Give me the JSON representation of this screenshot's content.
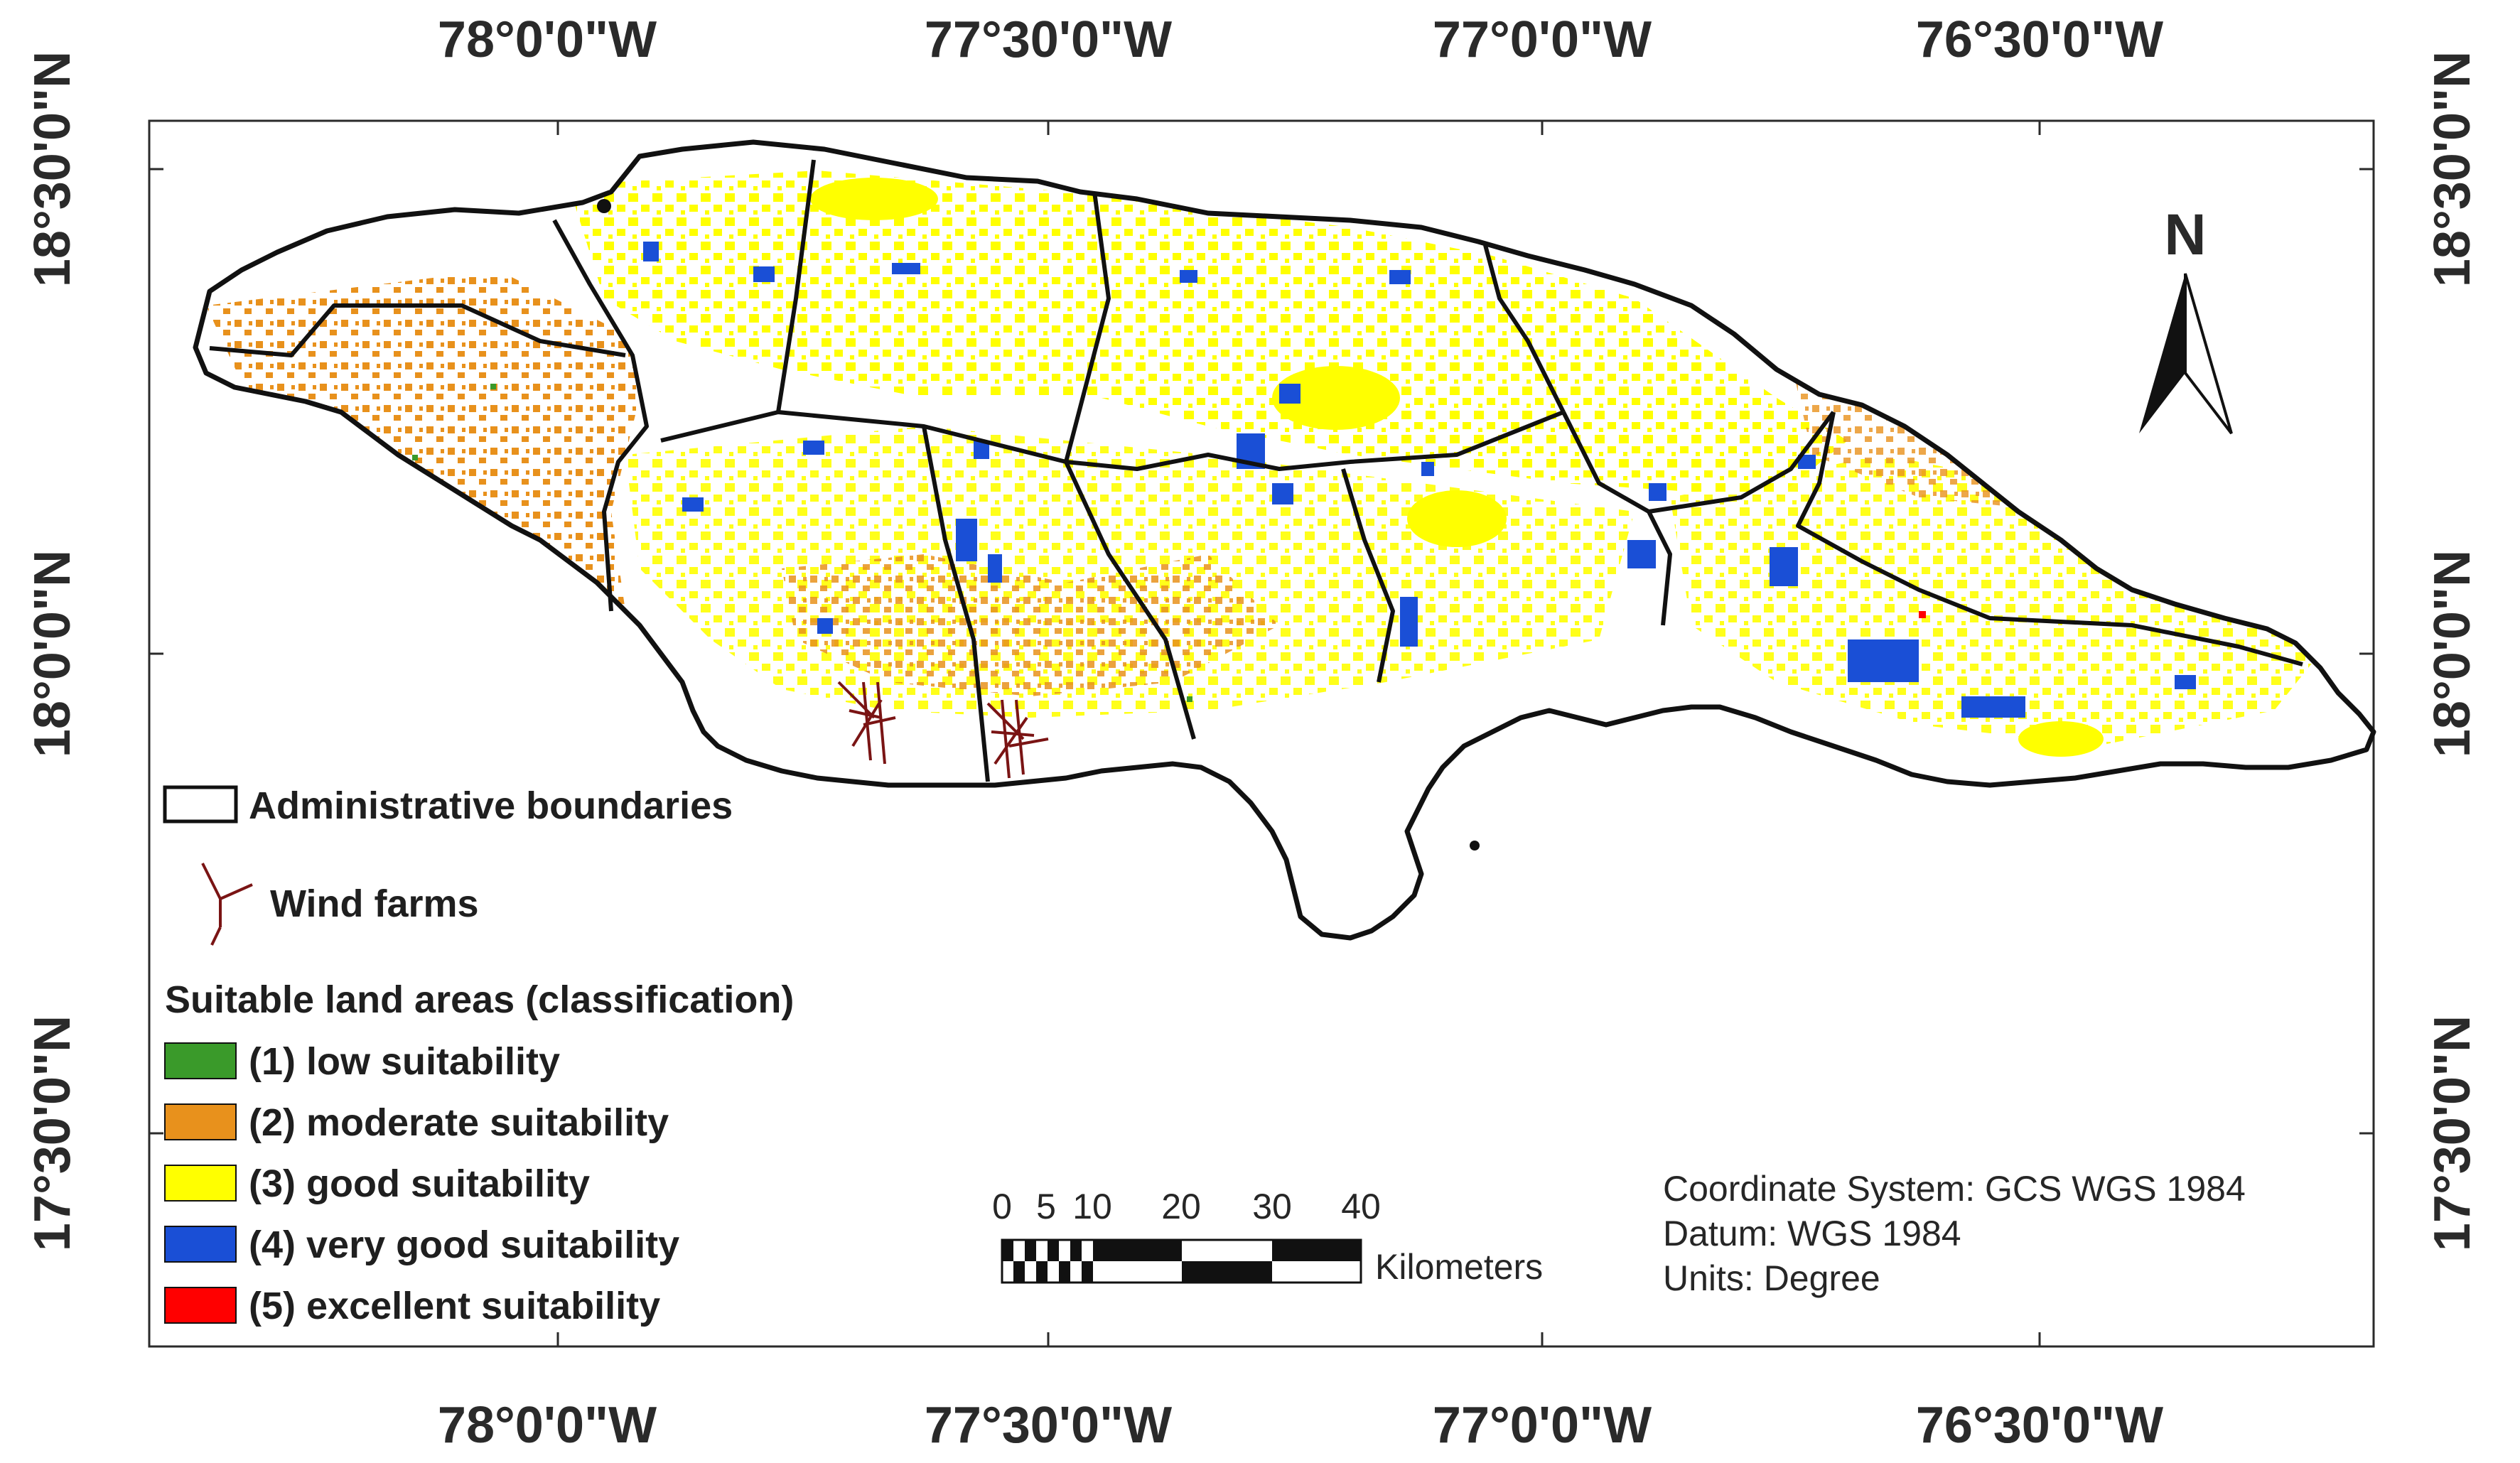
{
  "graticule": {
    "top_labels": [
      "78°0'0\"W",
      "77°30'0\"W",
      "77°0'0\"W",
      "76°30'0\"W"
    ],
    "bottom_labels": [
      "78°0'0\"W",
      "77°30'0\"W",
      "77°0'0\"W",
      "76°30'0\"W"
    ],
    "left_labels": [
      "18°30'0\"N",
      "18°0'0\"N",
      "17°30'0\"N"
    ],
    "right_labels": [
      "18°30'0\"N",
      "18°0'0\"N",
      "17°30'0\"N"
    ]
  },
  "north_arrow": {
    "label": "N"
  },
  "legend": {
    "boundaries_label": "Administrative boundaries",
    "wind_farms_label": "Wind farms",
    "classification_title": "Suitable land areas (classification)",
    "classes": [
      {
        "label": "(1) low suitability",
        "color": "#3a9a2a"
      },
      {
        "label": "(2) moderate suitability",
        "color": "#e8911c"
      },
      {
        "label": "(3) good suitability",
        "color": "#ffff00"
      },
      {
        "label": "(4) very good suitability",
        "color": "#1a4fd6"
      },
      {
        "label": "(5) excellent suitability",
        "color": "#ff0000"
      }
    ]
  },
  "scale_bar": {
    "tick_labels": [
      "0",
      "5",
      "10",
      "20",
      "30",
      "40"
    ],
    "unit": "Kilometers"
  },
  "metadata": {
    "coordinate_system": "Coordinate System: GCS WGS 1984",
    "datum": "Datum: WGS 1984",
    "units": "Units: Degree"
  },
  "colors": {
    "wind_farm": "#7a1414",
    "boundary": "#111111"
  }
}
